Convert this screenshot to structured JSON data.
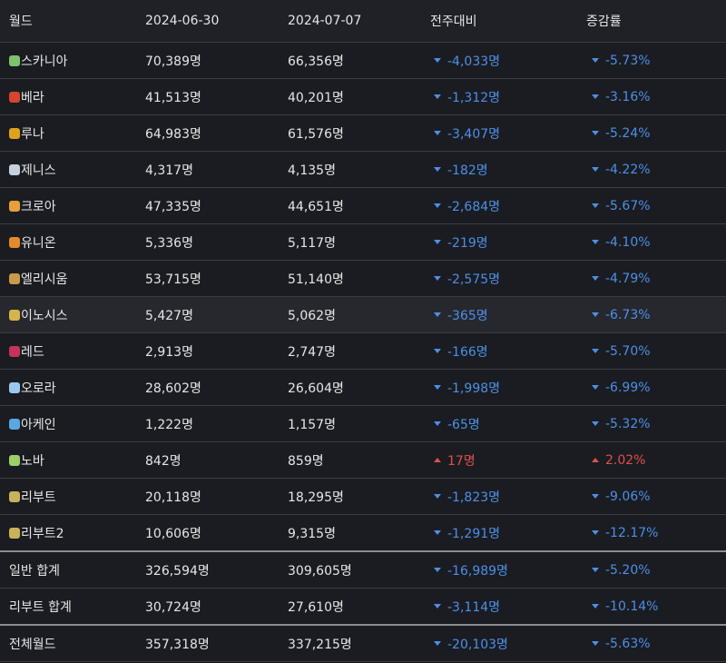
{
  "table": {
    "header": [
      "월드",
      "2024-06-30",
      "2024-07-07",
      "전주대비",
      "증감률"
    ],
    "rows": [
      [
        "스카니아",
        "70,389명",
        "66,356명",
        "-4,033명",
        "-5.73%"
      ],
      [
        "베라",
        "41,513명",
        "40,201명",
        "-1,312명",
        "-3.16%"
      ],
      [
        "루나",
        "64,983명",
        "61,576명",
        "-3,407명",
        "-5.24%"
      ],
      [
        "제니스",
        "4,317명",
        "4,135명",
        "-182명",
        "-4.22%"
      ],
      [
        "크로아",
        "47,335명",
        "44,651명",
        "-2,684명",
        "-5.67%"
      ],
      [
        "유니온",
        "5,336명",
        "5,117명",
        "-219명",
        "-4.10%"
      ],
      [
        "엘리시움",
        "53,715명",
        "51,140명",
        "-2,575명",
        "-4.79%"
      ],
      [
        "이노시스",
        "5,427명",
        "5,062명",
        "-365명",
        "-6.73%"
      ],
      [
        "레드",
        "2,913명",
        "2,747명",
        "-166명",
        "-5.70%"
      ],
      [
        "오로라",
        "28,602명",
        "26,604명",
        "-1,998명",
        "-6.99%"
      ],
      [
        "아케인",
        "1,222명",
        "1,157명",
        "-65명",
        "-5.32%"
      ],
      [
        "노바",
        "842명",
        "859명",
        "17명",
        "2.02%"
      ],
      [
        "리부트",
        "20,118명",
        "18,295명",
        "-1,823명",
        "-9.06%"
      ],
      [
        "리부트2",
        "10,606명",
        "9,315명",
        "-1,291명",
        "-12.17%"
      ],
      [
        "일반 합계",
        "326,594명",
        "309,605명",
        "-16,989명",
        "-5.20%"
      ],
      [
        "리부트 합계",
        "30,724명",
        "27,610명",
        "-3,114명",
        "-10.14%"
      ],
      [
        "전체월드",
        "357,318명",
        "337,215명",
        "-20,103명",
        "-5.63%"
      ]
    ]
  }
}
